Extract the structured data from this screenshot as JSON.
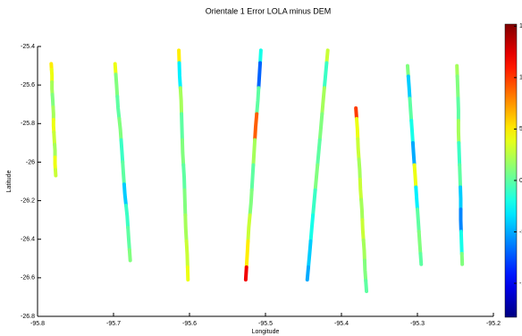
{
  "chart_data": {
    "type": "scatter",
    "title": "Orientale 1 Error LOLA minus DEM",
    "x_label": "Longitude",
    "y_label": "Latitude",
    "xlim": [
      -95.8,
      -95.2
    ],
    "xticks": [
      -95.8,
      -95.7,
      -95.6,
      -95.5,
      -95.4,
      -95.3,
      -95.2
    ],
    "ylim": [
      -26.8,
      -25.4
    ],
    "yticks": [
      -26.8,
      -26.6,
      -26.4,
      -26.2,
      -26,
      -25.8,
      -25.6,
      -25.4
    ],
    "colormap": "jet",
    "clim": [
      -13.3,
      15.2
    ],
    "cticks": [
      -10,
      -5,
      0,
      5,
      10,
      15
    ],
    "series": [
      {
        "x": [
          -95.782,
          -95.781,
          -95.781,
          -95.78,
          -95.779,
          -95.779,
          -95.778,
          -95.777,
          -95.777,
          -95.776
        ],
        "y": [
          -25.49,
          -25.55,
          -25.62,
          -25.68,
          -25.75,
          -25.81,
          -25.88,
          -25.94,
          -26.01,
          -26.07
        ],
        "values": [
          5,
          4,
          2,
          1,
          2,
          4,
          3,
          2,
          4,
          3
        ]
      },
      {
        "x": [
          -95.698,
          -95.696,
          -95.694,
          -95.691,
          -95.689,
          -95.687,
          -95.685,
          -95.682,
          -95.68,
          -95.678
        ],
        "y": [
          -25.49,
          -25.6,
          -25.72,
          -25.83,
          -25.94,
          -26.06,
          -26.17,
          -26.28,
          -26.4,
          -26.51
        ],
        "values": [
          4,
          1,
          0,
          1,
          -1,
          0,
          -4,
          -1,
          0,
          1
        ]
      },
      {
        "x": [
          -95.614,
          -95.613,
          -95.611,
          -95.61,
          -95.609,
          -95.607,
          -95.606,
          -95.605,
          -95.603,
          -95.602
        ],
        "y": [
          -25.42,
          -25.55,
          -25.68,
          -25.82,
          -25.95,
          -26.08,
          -26.21,
          -26.34,
          -26.48,
          -26.61
        ],
        "values": [
          5,
          -3,
          2,
          0,
          1,
          0,
          1,
          2,
          3,
          4
        ]
      },
      {
        "x": [
          -95.506,
          -95.508,
          -95.51,
          -95.513,
          -95.515,
          -95.517,
          -95.519,
          -95.522,
          -95.524,
          -95.526
        ],
        "y": [
          -25.42,
          -25.55,
          -25.68,
          -25.82,
          -25.95,
          -26.08,
          -26.21,
          -26.34,
          -26.48,
          -26.61
        ],
        "values": [
          -2,
          -7,
          0,
          9,
          2,
          0,
          1,
          3,
          5,
          12
        ]
      },
      {
        "x": [
          -95.418,
          -95.421,
          -95.424,
          -95.427,
          -95.43,
          -95.433,
          -95.436,
          -95.439,
          -95.442,
          -95.445
        ],
        "y": [
          -25.42,
          -25.55,
          -25.68,
          -25.82,
          -25.95,
          -26.08,
          -26.21,
          -26.34,
          -26.48,
          -26.61
        ],
        "values": [
          3,
          -1,
          2,
          1,
          0,
          1,
          -1,
          -2,
          -4,
          -5
        ]
      },
      {
        "x": [
          -95.381,
          -95.379,
          -95.378,
          -95.376,
          -95.375,
          -95.373,
          -95.372,
          -95.37,
          -95.369,
          -95.367
        ],
        "y": [
          -25.72,
          -25.83,
          -25.93,
          -26.04,
          -26.14,
          -26.25,
          -26.35,
          -26.46,
          -26.56,
          -26.67
        ],
        "values": [
          10,
          4,
          3,
          2,
          3,
          2,
          3,
          2,
          1,
          0
        ]
      },
      {
        "x": [
          -95.313,
          -95.311,
          -95.309,
          -95.307,
          -95.305,
          -95.303,
          -95.301,
          -95.299,
          -95.297,
          -95.295
        ],
        "y": [
          -25.5,
          -25.61,
          -25.73,
          -25.84,
          -25.96,
          -26.07,
          -26.19,
          -26.3,
          -26.42,
          -26.53
        ],
        "values": [
          1,
          -4,
          0,
          -2,
          -5,
          4,
          -3,
          0,
          1,
          0
        ]
      },
      {
        "x": [
          -95.248,
          -95.247,
          -95.246,
          -95.246,
          -95.245,
          -95.244,
          -95.243,
          -95.243,
          -95.242,
          -95.241
        ],
        "y": [
          -25.5,
          -25.61,
          -25.73,
          -25.84,
          -25.96,
          -26.07,
          -26.19,
          -26.3,
          -26.42,
          -26.53
        ],
        "values": [
          2,
          1,
          0,
          2,
          -1,
          0,
          -4,
          -6,
          -2,
          1
        ]
      }
    ]
  }
}
